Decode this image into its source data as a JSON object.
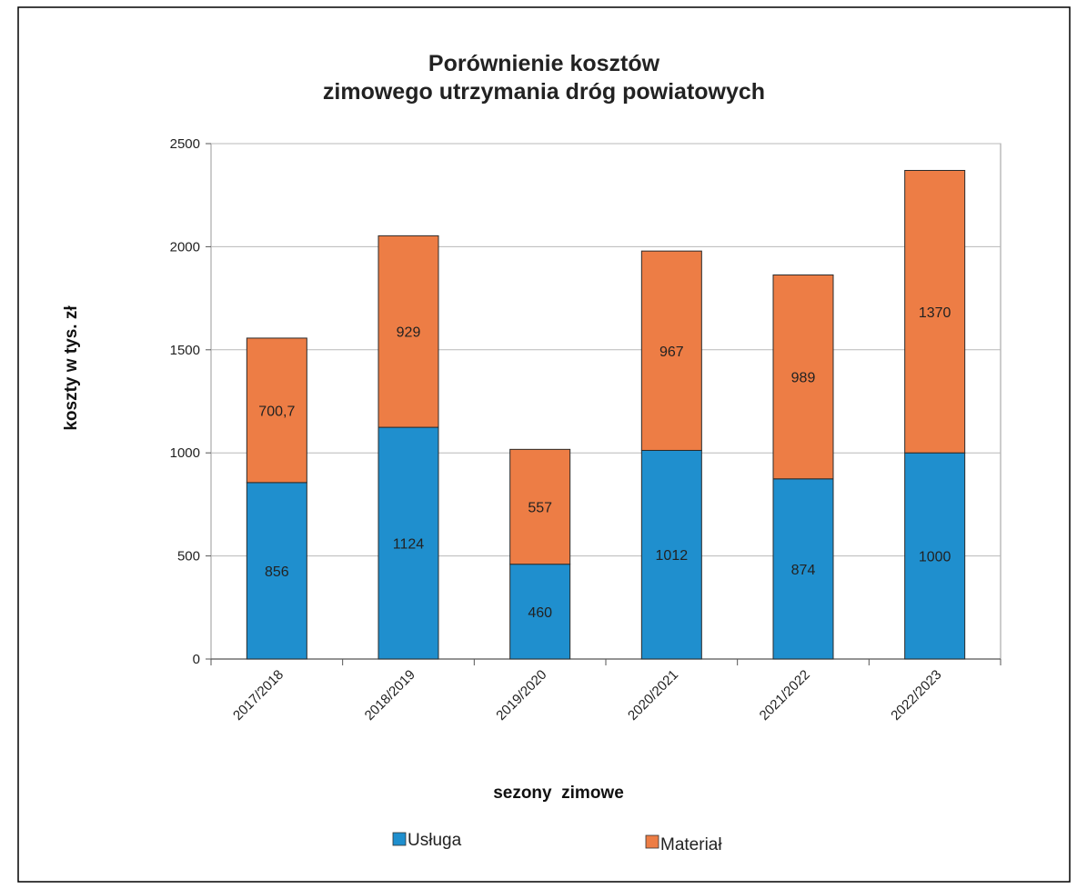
{
  "chart_data": {
    "type": "bar",
    "stacked": true,
    "title": [
      "Porównienie kosztów",
      "zimowego utrzymania dróg powiatowych"
    ],
    "xlabel": "sezony  zimowe",
    "ylabel": "koszty w tys. zł",
    "ylim": [
      0,
      2500
    ],
    "yticks": [
      0,
      500,
      1000,
      1500,
      2000,
      2500
    ],
    "grid": true,
    "legend_position": "bottom",
    "categories": [
      "2017/2018",
      "2018/2019",
      "2019/2020",
      "2020/2021",
      "2021/2022",
      "2022/2023"
    ],
    "series": [
      {
        "name": "Usługa",
        "color": "#1f8fce",
        "values": [
          856,
          1124,
          460,
          1012,
          874,
          1000
        ],
        "labels": [
          "856",
          "1124",
          "460",
          "1012",
          "874",
          "1000"
        ]
      },
      {
        "name": "Materiał",
        "color": "#ed7d45",
        "values": [
          700.7,
          929,
          557,
          967,
          989,
          1370
        ],
        "labels": [
          "700,7",
          "929",
          "557",
          "967",
          "989",
          "1370"
        ]
      }
    ]
  }
}
